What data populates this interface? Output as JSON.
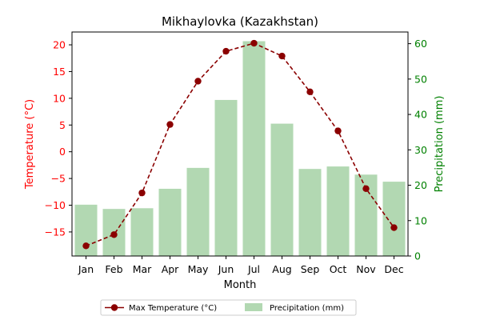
{
  "chart_data": {
    "type": "bar",
    "title": "Mikhaylovka (Kazakhstan)",
    "xlabel": "Month",
    "categories": [
      "Jan",
      "Feb",
      "Mar",
      "Apr",
      "May",
      "Jun",
      "Jul",
      "Aug",
      "Sep",
      "Oct",
      "Nov",
      "Dec"
    ],
    "series": [
      {
        "name": "Max Temperature (°C)",
        "type": "line",
        "axis": "left",
        "values": [
          -17.6,
          -15.5,
          -7.7,
          5.1,
          13.2,
          18.8,
          20.3,
          17.9,
          11.2,
          3.9,
          -6.9,
          -14.2
        ]
      },
      {
        "name": "Precipitation (mm)",
        "type": "bar",
        "axis": "right",
        "values": [
          14.5,
          13.3,
          13.5,
          19.0,
          24.9,
          44.1,
          60.7,
          37.4,
          24.6,
          25.3,
          23.0,
          21.0
        ]
      }
    ],
    "ylabel": "Temperature (°C)",
    "ylim": [
      -19.5,
      22.4
    ],
    "yticks": [
      -15,
      -10,
      -5,
      0,
      5,
      10,
      15,
      20
    ],
    "y2label": "Precipitation (mm)",
    "y2lim": [
      0,
      63.3
    ],
    "y2ticks": [
      0,
      10,
      20,
      30,
      40,
      50,
      60
    ],
    "legend_position": "bottom-center",
    "grid": false,
    "colors": {
      "temperature_line": "#8b0000",
      "temperature_axis": "#ff0000",
      "precipitation_bar": "#b2d8b2",
      "precipitation_axis": "#008000"
    }
  }
}
